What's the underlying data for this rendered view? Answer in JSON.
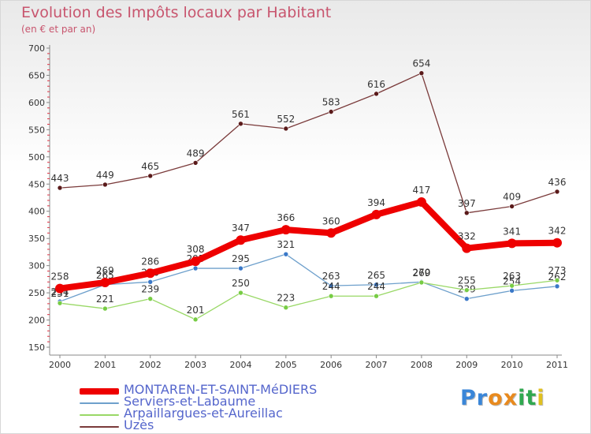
{
  "title": "Evolution des Impôts locaux par Habitant",
  "subtitle": "(en € et par an)",
  "logo": {
    "letters": [
      "P",
      "r",
      "o",
      "x",
      "i",
      "t",
      "i"
    ],
    "colors": [
      "#3a86d8",
      "#3a86d8",
      "#e88a1e",
      "#e88a1e",
      "#2fa84f",
      "#2fa84f",
      "#e0c020"
    ]
  },
  "chart_data": {
    "type": "line",
    "x": [
      "2000",
      "2001",
      "2002",
      "2003",
      "2004",
      "2005",
      "2006",
      "2007",
      "2008",
      "2009",
      "2010",
      "2011"
    ],
    "ylim": [
      150,
      700
    ],
    "yticks": [
      150,
      200,
      250,
      300,
      350,
      400,
      450,
      500,
      550,
      600,
      650,
      700
    ],
    "grid": false,
    "legend_position": "bottom-left",
    "series": [
      {
        "name": "Uzès",
        "color": "#7a3a3a",
        "point_color": "#5a1a1a",
        "values": [
          443,
          449,
          465,
          489,
          561,
          552,
          583,
          616,
          654,
          397,
          409,
          436
        ]
      },
      {
        "name": "Serviers-et-Labaume",
        "color": "#6ea0cc",
        "point_color": "#3a78c8",
        "values": [
          234,
          265,
          270,
          295,
          295,
          321,
          263,
          265,
          270,
          239,
          254,
          262
        ]
      },
      {
        "name": "Arpaillargues-et-Aureillac",
        "color": "#99d866",
        "point_color": "#77cc44",
        "values": [
          231,
          221,
          239,
          201,
          250,
          223,
          244,
          244,
          269,
          255,
          263,
          273
        ]
      },
      {
        "name": "MONTAREN-ET-SAINT-MéDIERS",
        "color": "#ee0000",
        "point_color": "#ee0000",
        "values": [
          258,
          269,
          286,
          308,
          347,
          366,
          360,
          394,
          417,
          332,
          341,
          342
        ]
      }
    ]
  }
}
